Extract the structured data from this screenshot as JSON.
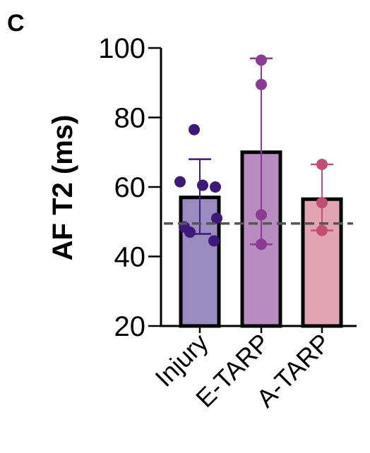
{
  "panel_label": "C",
  "chart_data": {
    "type": "bar",
    "categories": [
      "Injury",
      "E-TARP",
      "A-TARP"
    ],
    "ylabel": "AF T2 (ms)",
    "ylim": [
      20,
      100
    ],
    "yticks": [
      20,
      40,
      60,
      80,
      100
    ],
    "reference_line": 49.5,
    "series": [
      {
        "values": [
          57,
          70,
          56.5
        ],
        "error_low": [
          46.5,
          43.5,
          47.5
        ],
        "error_high": [
          68,
          97,
          66.5
        ],
        "points": [
          [
            76.5,
            61.5,
            60.5,
            60,
            51,
            48.5,
            44.5,
            47
          ],
          [
            96.5,
            89.5,
            52,
            43.5
          ],
          [
            66.5,
            55.5,
            47.5
          ]
        ]
      }
    ],
    "colors": {
      "bars": [
        "#9a8cc0",
        "#b98cc1",
        "#e3a4b1"
      ],
      "points": [
        "#3d1a7a",
        "#8a3b93",
        "#c04f72"
      ],
      "errors": [
        "#3d1a7a",
        "#8a3b93",
        "#c04f72"
      ],
      "reference": "#555555"
    }
  }
}
